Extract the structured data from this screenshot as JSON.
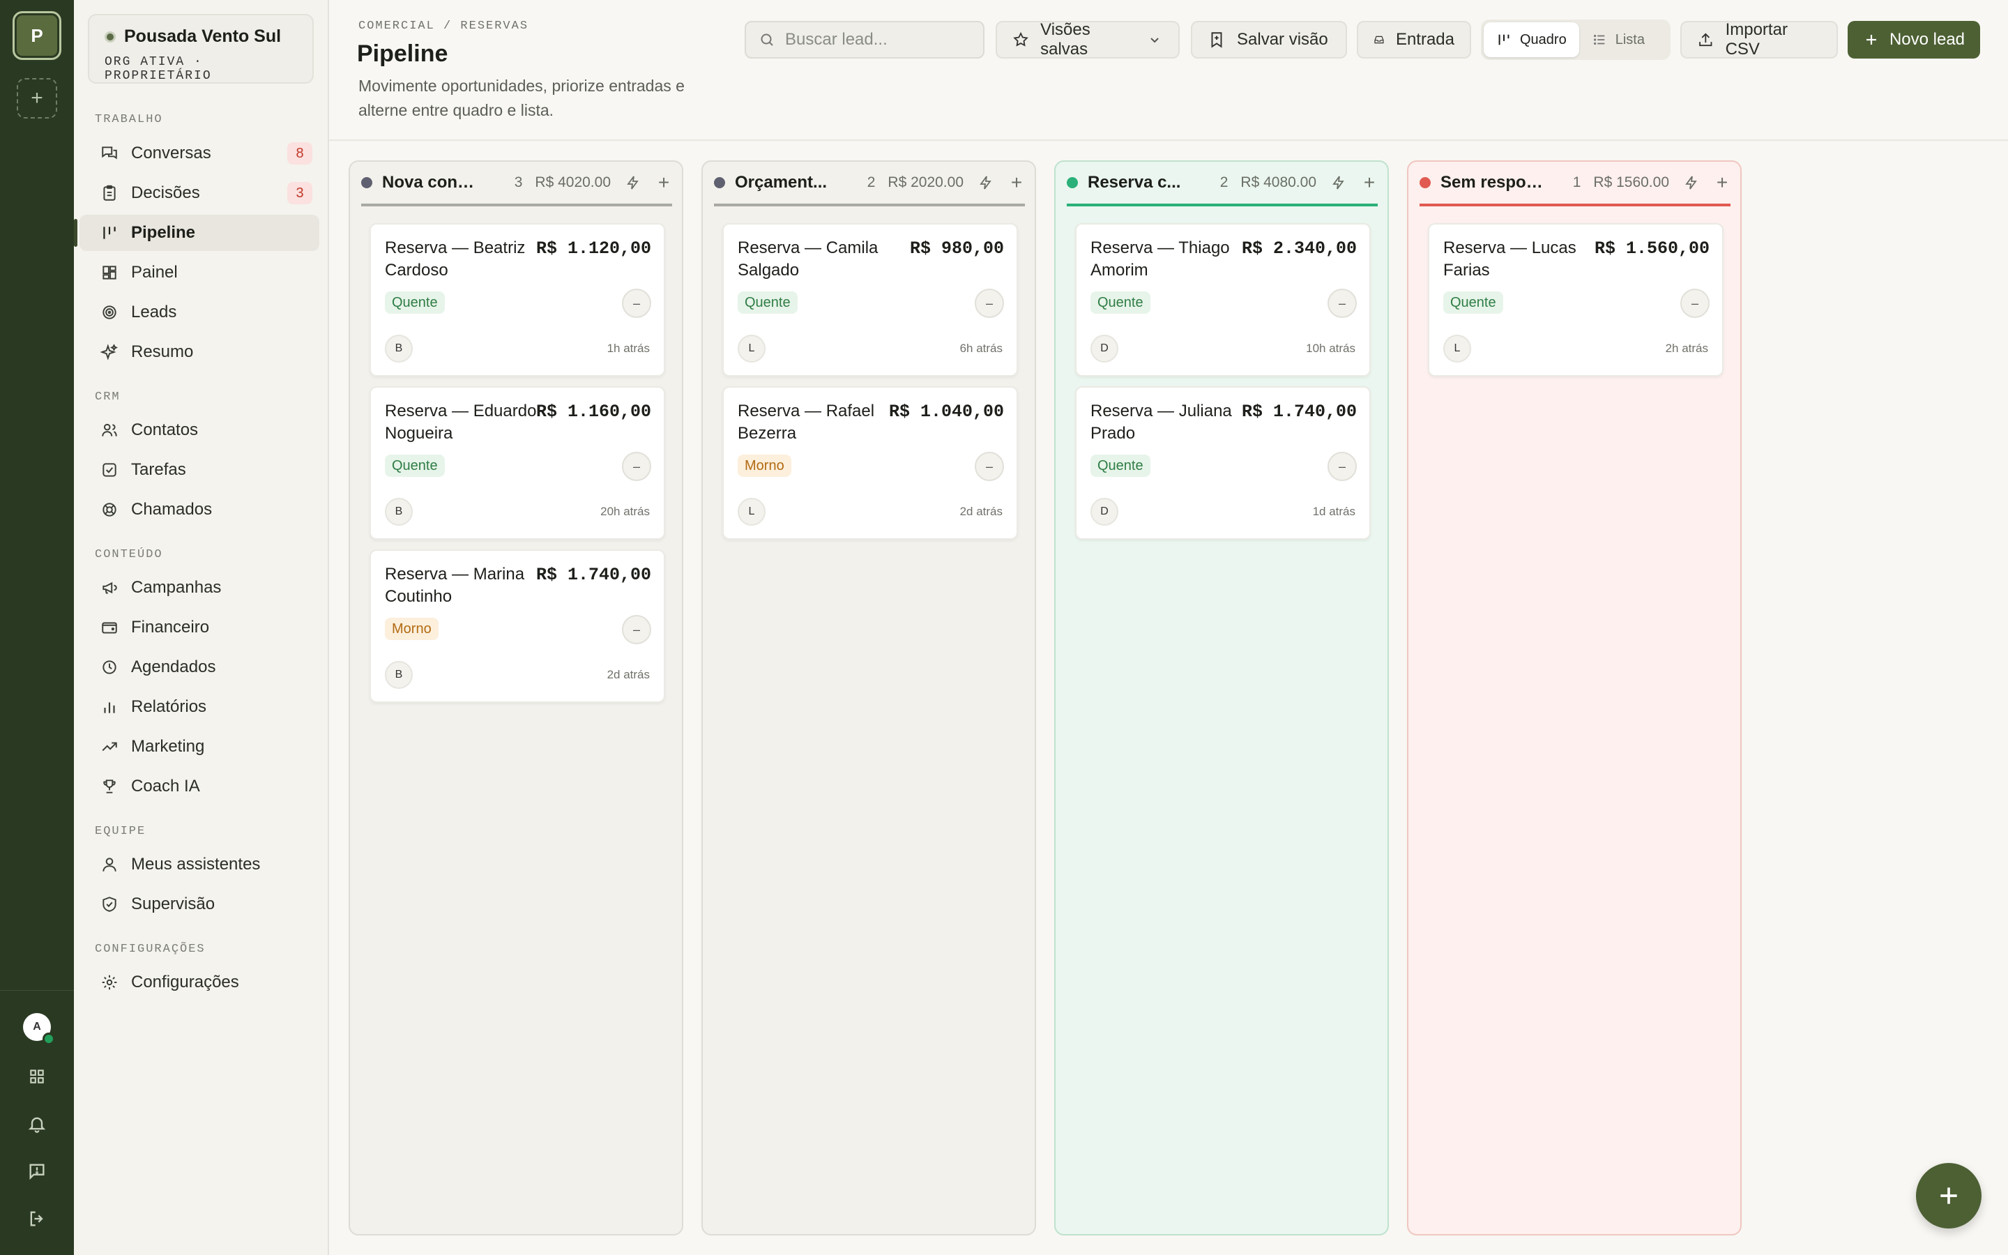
{
  "rail": {
    "org_initial": "P",
    "add_label": "+",
    "user_initial": "A"
  },
  "sidebar": {
    "org_name": "Pousada Vento Sul",
    "org_sub": "ORG ATIVA · PROPRIETÁRIO",
    "sections": {
      "trabalho": "TRABALHO",
      "crm": "CRM",
      "conteudo": "CONTEÚDO",
      "equipe": "EQUIPE",
      "config": "CONFIGURAÇÕES"
    },
    "items": [
      {
        "label": "Conversas",
        "badge": "8"
      },
      {
        "label": "Decisões",
        "badge": "3"
      },
      {
        "label": "Pipeline"
      },
      {
        "label": "Painel"
      },
      {
        "label": "Leads"
      },
      {
        "label": "Resumo"
      },
      {
        "label": "Contatos"
      },
      {
        "label": "Tarefas"
      },
      {
        "label": "Chamados"
      },
      {
        "label": "Campanhas"
      },
      {
        "label": "Financeiro"
      },
      {
        "label": "Agendados"
      },
      {
        "label": "Relatórios"
      },
      {
        "label": "Marketing"
      },
      {
        "label": "Coach IA"
      },
      {
        "label": "Meus assistentes"
      },
      {
        "label": "Supervisão"
      },
      {
        "label": "Configurações"
      }
    ]
  },
  "header": {
    "breadcrumb": "COMERCIAL / RESERVAS",
    "title": "Pipeline",
    "description": "Movimente oportunidades, priorize entradas e alterne entre quadro e lista.",
    "search_placeholder": "Buscar lead...",
    "saved_views": "Visões salvas",
    "save_view": "Salvar visão",
    "inbox": "Entrada",
    "view_board": "Quadro",
    "view_list": "Lista",
    "import_csv": "Importar CSV",
    "new_lead": "Novo lead"
  },
  "columns": [
    {
      "name": "Nova cons...",
      "count": "3",
      "total": "R$ 4020.00",
      "color": "#5f6070",
      "cards": [
        {
          "name": "Reserva — Beatriz Cardoso",
          "amount": "R$ 1.120,00",
          "tag": "Quente",
          "initial": "B",
          "ago": "1h atrás"
        },
        {
          "name": "Reserva — Eduardo Nogueira",
          "amount": "R$ 1.160,00",
          "tag": "Quente",
          "initial": "B",
          "ago": "20h atrás"
        },
        {
          "name": "Reserva — Marina Coutinho",
          "amount": "R$ 1.740,00",
          "tag": "Morno",
          "initial": "B",
          "ago": "2d atrás"
        }
      ]
    },
    {
      "name": "Orçament...",
      "count": "2",
      "total": "R$ 2020.00",
      "color": "#5f6070",
      "cards": [
        {
          "name": "Reserva — Camila Salgado",
          "amount": "R$ 980,00",
          "tag": "Quente",
          "initial": "L",
          "ago": "6h atrás"
        },
        {
          "name": "Reserva — Rafael Bezerra",
          "amount": "R$ 1.040,00",
          "tag": "Morno",
          "initial": "L",
          "ago": "2d atrás"
        }
      ]
    },
    {
      "name": "Reserva c...",
      "count": "2",
      "total": "R$ 4080.00",
      "color": "#2bb07a",
      "cards": [
        {
          "name": "Reserva — Thiago Amorim",
          "amount": "R$ 2.340,00",
          "tag": "Quente",
          "initial": "D",
          "ago": "10h atrás"
        },
        {
          "name": "Reserva — Juliana Prado",
          "amount": "R$ 1.740,00",
          "tag": "Quente",
          "initial": "D",
          "ago": "1d atrás"
        }
      ]
    },
    {
      "name": "Sem respos...",
      "count": "1",
      "total": "R$ 1560.00",
      "color": "#e05a52",
      "cards": [
        {
          "name": "Reserva — Lucas Farias",
          "amount": "R$ 1.560,00",
          "tag": "Quente",
          "initial": "L",
          "ago": "2h atrás"
        }
      ]
    }
  ],
  "card_menu_glyph": "–",
  "colors": {
    "rail": "#2a3a22",
    "primary": "#4d6034",
    "hot": "#2f7d44",
    "warm": "#b26b12"
  }
}
